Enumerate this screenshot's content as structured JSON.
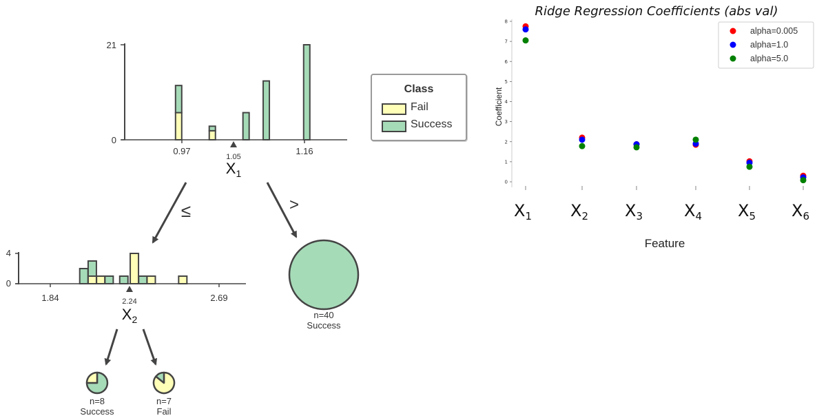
{
  "colors": {
    "fail": "#ffffb8",
    "success": "#a6dbb8",
    "edge": "#444444",
    "alpha_0_005": "#ff0000",
    "alpha_1_0": "#0000ff",
    "alpha_5_0": "#008000"
  },
  "legend": {
    "title": "Class",
    "fail_label": "Fail",
    "success_label": "Success"
  },
  "tree": {
    "root_variable": "X",
    "root_subscript": "1",
    "left_branch_label": "≤",
    "right_branch_label": ">",
    "child_variable": "X",
    "child_subscript": "2",
    "right_leaf_count": "n=40",
    "right_leaf_label": "Success",
    "leaf_left_count": "n=8",
    "leaf_left_label": "Success",
    "leaf_right_count": "n=7",
    "leaf_right_label": "Fail"
  },
  "chart_data": [
    {
      "type": "bar",
      "stacked": true,
      "panel": "root-split-histogram",
      "xtick_labels": [
        "0.97",
        "1.16"
      ],
      "xticks": [
        0.97,
        1.16
      ],
      "ytick_labels": [
        "0",
        "21"
      ],
      "yticks": [
        0,
        21
      ],
      "xlim": [
        0.89,
        1.22
      ],
      "ylim": [
        0,
        21
      ],
      "split_value": 1.05,
      "split_label": "1.05",
      "bins": [
        {
          "x": 0.97,
          "fail": 6,
          "success": 6
        },
        {
          "x": 1.02,
          "fail": 2,
          "success": 1
        },
        {
          "x": 1.07,
          "fail": 0,
          "success": 6
        },
        {
          "x": 1.1,
          "fail": 0,
          "success": 13
        },
        {
          "x": 1.16,
          "fail": 0,
          "success": 21
        }
      ],
      "series": [
        {
          "name": "Fail"
        },
        {
          "name": "Success"
        }
      ]
    },
    {
      "type": "bar",
      "stacked": true,
      "panel": "x2-split-histogram",
      "xtick_labels": [
        "1.84",
        "2.69"
      ],
      "xticks": [
        1.84,
        2.69
      ],
      "ytick_labels": [
        "0",
        "4"
      ],
      "yticks": [
        0,
        4
      ],
      "xlim": [
        1.69,
        2.77
      ],
      "ylim": [
        0,
        4
      ],
      "split_value": 2.24,
      "split_label": "2.24",
      "bins": [
        {
          "x": 2.0,
          "fail": 0,
          "success": 2
        },
        {
          "x": 2.04,
          "fail": 1,
          "success": 2
        },
        {
          "x": 2.08,
          "fail": 1,
          "success": 0
        },
        {
          "x": 2.12,
          "fail": 0,
          "success": 1
        },
        {
          "x": 2.19,
          "fail": 0,
          "success": 1
        },
        {
          "x": 2.24,
          "fail": 4,
          "success": 0
        },
        {
          "x": 2.28,
          "fail": 0,
          "success": 1
        },
        {
          "x": 2.32,
          "fail": 1,
          "success": 0
        },
        {
          "x": 2.47,
          "fail": 1,
          "success": 0
        }
      ],
      "series": [
        {
          "name": "Fail"
        },
        {
          "name": "Success"
        }
      ]
    },
    {
      "type": "pie",
      "panel": "leaf-right-root",
      "slices": [
        {
          "name": "Success",
          "value": 40
        },
        {
          "name": "Fail",
          "value": 0
        }
      ]
    },
    {
      "type": "pie",
      "panel": "leaf-left-x2",
      "slices": [
        {
          "name": "Success",
          "value": 6
        },
        {
          "name": "Fail",
          "value": 2
        }
      ]
    },
    {
      "type": "pie",
      "panel": "leaf-right-x2",
      "slices": [
        {
          "name": "Fail",
          "value": 6
        },
        {
          "name": "Success",
          "value": 1
        }
      ]
    },
    {
      "type": "scatter",
      "panel": "ridge-coefficients",
      "title": "Ridge Regression Coefficients (abs val)",
      "xlabel": "Feature",
      "ylabel": "Coefficient",
      "categories": [
        {
          "base": "X",
          "sub": "1"
        },
        {
          "base": "X",
          "sub": "2"
        },
        {
          "base": "X",
          "sub": "3"
        },
        {
          "base": "X",
          "sub": "4"
        },
        {
          "base": "X",
          "sub": "5"
        },
        {
          "base": "X",
          "sub": "6"
        }
      ],
      "yticks": [
        0,
        1,
        2,
        3,
        4,
        5,
        6,
        7,
        8
      ],
      "ytick_labels": [
        "0",
        "1",
        "2",
        "3",
        "4",
        "5",
        "6",
        "7",
        "8"
      ],
      "ylim": [
        -0.2,
        8.1
      ],
      "legend_position": "top-right",
      "series": [
        {
          "name": "alpha=0.005",
          "values": [
            7.75,
            2.2,
            1.87,
            1.85,
            1.02,
            0.3
          ]
        },
        {
          "name": "alpha=1.0",
          "values": [
            7.6,
            2.1,
            1.87,
            1.9,
            0.95,
            0.22
          ]
        },
        {
          "name": "alpha=5.0",
          "values": [
            7.05,
            1.78,
            1.72,
            2.1,
            0.75,
            0.08
          ]
        }
      ]
    }
  ]
}
